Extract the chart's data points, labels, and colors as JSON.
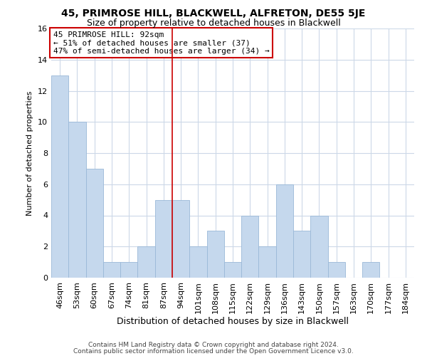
{
  "title": "45, PRIMROSE HILL, BLACKWELL, ALFRETON, DE55 5JE",
  "subtitle": "Size of property relative to detached houses in Blackwell",
  "xlabel": "Distribution of detached houses by size in Blackwell",
  "ylabel": "Number of detached properties",
  "footer_line1": "Contains HM Land Registry data © Crown copyright and database right 2024.",
  "footer_line2": "Contains public sector information licensed under the Open Government Licence v3.0.",
  "bin_labels": [
    "46sqm",
    "53sqm",
    "60sqm",
    "67sqm",
    "74sqm",
    "81sqm",
    "87sqm",
    "94sqm",
    "101sqm",
    "108sqm",
    "115sqm",
    "122sqm",
    "129sqm",
    "136sqm",
    "143sqm",
    "150sqm",
    "157sqm",
    "163sqm",
    "170sqm",
    "177sqm",
    "184sqm"
  ],
  "bar_heights": [
    13,
    10,
    7,
    1,
    1,
    2,
    5,
    5,
    2,
    3,
    1,
    4,
    2,
    6,
    3,
    4,
    1,
    0,
    1,
    0,
    0
  ],
  "bar_color": "#c5d8ed",
  "bar_edge_color": "#9ab8d8",
  "highlight_line_color": "#cc0000",
  "annotation_title": "45 PRIMROSE HILL: 92sqm",
  "annotation_line1": "← 51% of detached houses are smaller (37)",
  "annotation_line2": "47% of semi-detached houses are larger (34) →",
  "annotation_box_edge": "#cc0000",
  "ylim": [
    0,
    16
  ],
  "yticks": [
    0,
    2,
    4,
    6,
    8,
    10,
    12,
    14,
    16
  ],
  "background_color": "#ffffff",
  "grid_color": "#ccd8e8",
  "title_fontsize": 10,
  "subtitle_fontsize": 9,
  "xlabel_fontsize": 9,
  "ylabel_fontsize": 8,
  "tick_fontsize": 8,
  "footer_fontsize": 6.5,
  "annotation_fontsize": 8
}
